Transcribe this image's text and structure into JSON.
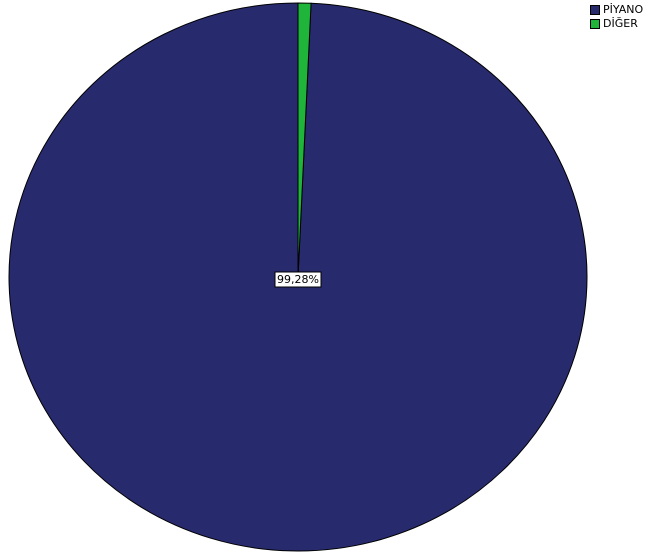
{
  "chart_data": {
    "type": "pie",
    "categories": [
      "PİYANO",
      "DİĞER"
    ],
    "values": [
      99.28,
      0.72
    ],
    "colors": [
      "#282a6e",
      "#1fb53a"
    ],
    "data_labels": [
      "99,28%"
    ],
    "start_angle_deg": 0,
    "direction": "counterclockwise",
    "legend_position": "top-right",
    "title": ""
  },
  "legend": {
    "items": [
      {
        "label": "PİYANO",
        "color": "#282a6e"
      },
      {
        "label": "DİĞER",
        "color": "#1fb53a"
      }
    ]
  }
}
